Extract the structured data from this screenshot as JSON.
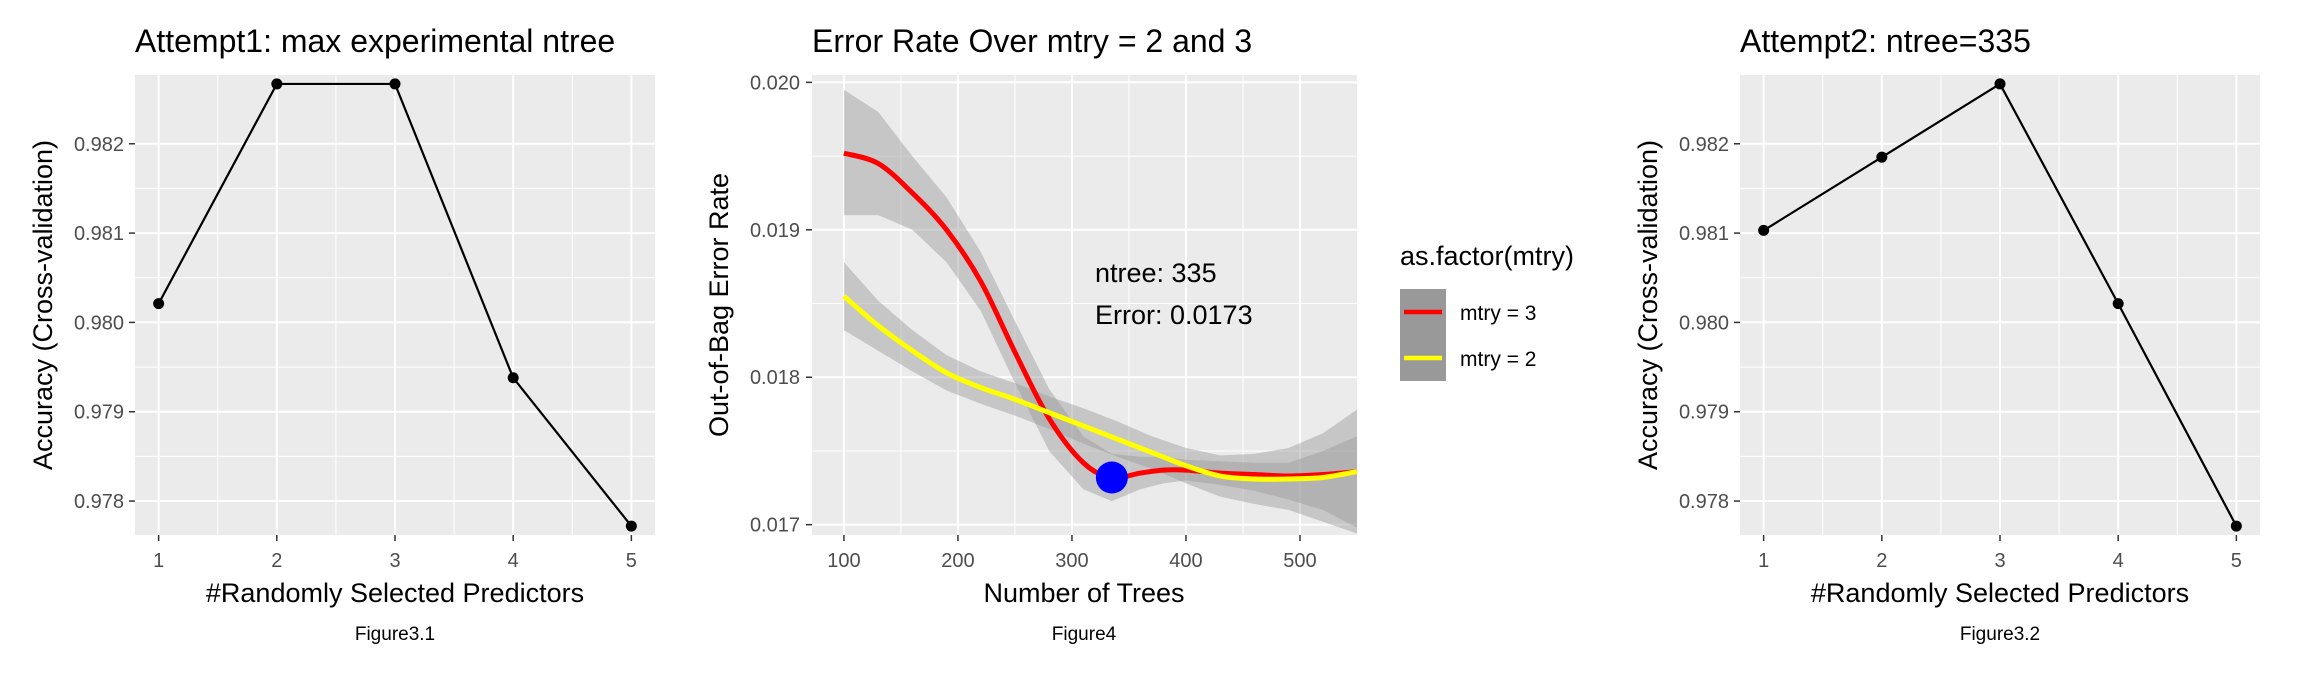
{
  "colors": {
    "panel_bg": "#EBEBEB",
    "grid": "#FFFFFF",
    "line": "#000000",
    "tick_text": "#4D4D4D",
    "mtry3": "#FF0000",
    "mtry2": "#FFFF00",
    "band": "#999999",
    "marker": "#0000FF"
  },
  "chart_data": [
    {
      "type": "line",
      "title": "Attempt1: max experimental ntree",
      "xlabel": "#Randomly Selected Predictors",
      "ylabel": "Accuracy (Cross-validation)",
      "caption": "Figure3.1",
      "x": [
        1,
        2,
        3,
        4,
        5
      ],
      "y": [
        0.98021,
        0.98267,
        0.98267,
        0.97938,
        0.97772
      ],
      "xlim": [
        0.8,
        5.2
      ],
      "ylim": [
        0.97762,
        0.98277
      ],
      "xticks": [
        "1",
        "2",
        "3",
        "4",
        "5"
      ],
      "yticks": [
        "0.978",
        "0.979",
        "0.980",
        "0.981",
        "0.982"
      ],
      "grid": true
    },
    {
      "type": "line",
      "title": "Error Rate Over mtry = 2 and 3",
      "xlabel": "Number of Trees",
      "ylabel": "Out-of-Bag Error Rate",
      "caption": "Figure4",
      "xlim": [
        72,
        550
      ],
      "ylim": [
        16.93,
        20.05
      ],
      "y_scale": 0.001,
      "xticks": [
        "100",
        "200",
        "300",
        "400",
        "500"
      ],
      "yticks": [
        "0.017",
        "0.018",
        "0.019",
        "0.020"
      ],
      "grid": true,
      "legend": {
        "title": "as.factor(mtry)",
        "position": "right",
        "entries": [
          "mtry = 3",
          "mtry = 2"
        ]
      },
      "series": [
        {
          "name": "mtry = 3",
          "x": [
            100,
            130,
            160,
            190,
            220,
            250,
            280,
            310,
            335,
            360,
            380,
            400,
            430,
            460,
            490,
            520,
            550
          ],
          "y": [
            19.52,
            19.45,
            19.25,
            19.0,
            18.65,
            18.17,
            17.72,
            17.42,
            17.32,
            17.35,
            17.37,
            17.37,
            17.35,
            17.34,
            17.33,
            17.34,
            17.36
          ],
          "band_upper": [
            19.95,
            19.8,
            19.5,
            19.22,
            18.85,
            18.38,
            17.92,
            17.6,
            17.48,
            17.46,
            17.46,
            17.44,
            17.43,
            17.42,
            17.42,
            17.5,
            17.6
          ],
          "band_lower": [
            19.1,
            19.1,
            19.0,
            18.78,
            18.45,
            17.96,
            17.5,
            17.24,
            17.16,
            17.24,
            17.28,
            17.3,
            17.27,
            17.23,
            17.17,
            17.1,
            16.98
          ]
        },
        {
          "name": "mtry = 2",
          "x": [
            100,
            130,
            160,
            190,
            220,
            250,
            280,
            310,
            340,
            370,
            400,
            430,
            460,
            490,
            520,
            550
          ],
          "y": [
            18.55,
            18.35,
            18.18,
            18.03,
            17.93,
            17.85,
            17.76,
            17.67,
            17.58,
            17.49,
            17.4,
            17.33,
            17.31,
            17.31,
            17.32,
            17.36
          ],
          "band_upper": [
            18.78,
            18.52,
            18.32,
            18.15,
            18.04,
            17.96,
            17.87,
            17.79,
            17.7,
            17.6,
            17.52,
            17.47,
            17.48,
            17.52,
            17.62,
            17.78
          ],
          "band_lower": [
            18.32,
            18.18,
            18.04,
            17.91,
            17.82,
            17.74,
            17.65,
            17.55,
            17.46,
            17.38,
            17.28,
            17.19,
            17.14,
            17.1,
            17.02,
            16.94
          ]
        }
      ],
      "annotation": {
        "text_lines": [
          "ntree: 335",
          "Error: 0.0173"
        ],
        "point": {
          "x": 335,
          "y": 17.32
        }
      }
    },
    {
      "type": "line",
      "title": "Attempt2: ntree=335",
      "xlabel": "#Randomly Selected Predictors",
      "ylabel": "Accuracy (Cross-validation)",
      "caption": "Figure3.2",
      "x": [
        1,
        2,
        3,
        4,
        5
      ],
      "y": [
        0.98103,
        0.98185,
        0.98267,
        0.98021,
        0.97772
      ],
      "xlim": [
        0.8,
        5.2
      ],
      "ylim": [
        0.97762,
        0.98277
      ],
      "xticks": [
        "1",
        "2",
        "3",
        "4",
        "5"
      ],
      "yticks": [
        "0.978",
        "0.979",
        "0.980",
        "0.981",
        "0.982"
      ],
      "grid": true
    }
  ]
}
